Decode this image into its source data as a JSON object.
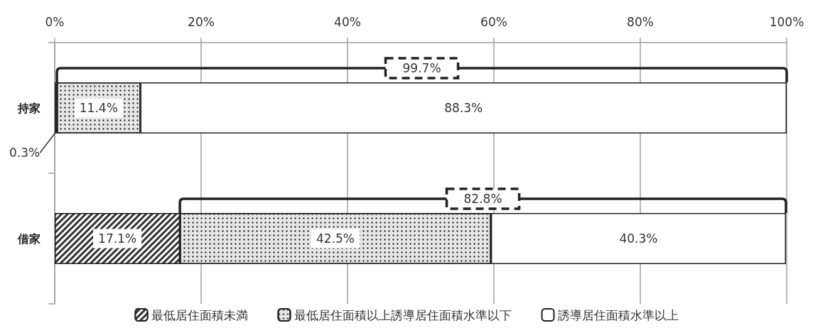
{
  "chart_data": {
    "type": "bar",
    "orientation": "horizontal",
    "stacked": true,
    "categories": [
      "持家",
      "借家"
    ],
    "series": [
      {
        "name": "最低居住面積未満",
        "color": "#333333",
        "values": [
          0.3,
          17.1
        ],
        "value_labels": [
          "0.3%",
          "17.1%"
        ]
      },
      {
        "name": "最低居住面積以上誘導居住面積水準以下",
        "color": "#e6e6e6",
        "values": [
          11.4,
          42.5
        ],
        "value_labels": [
          "11.4%",
          "42.5%"
        ]
      },
      {
        "name": "誘導居住面積水準以上",
        "color": "#ffffff",
        "values": [
          88.3,
          40.3
        ],
        "value_labels": [
          "88.3%",
          "40.3%"
        ]
      }
    ],
    "xlim": [
      0,
      100
    ],
    "xticks": [
      {
        "value": 0,
        "label": "0%"
      },
      {
        "value": 20,
        "label": "20%"
      },
      {
        "value": 40,
        "label": "40%"
      },
      {
        "value": 60,
        "label": "60%"
      },
      {
        "value": 80,
        "label": "80%"
      },
      {
        "value": 100,
        "label": "100%"
      }
    ],
    "grid": "x",
    "legend": "bottom",
    "annotations": [
      "99.7%",
      "82.8%"
    ]
  }
}
